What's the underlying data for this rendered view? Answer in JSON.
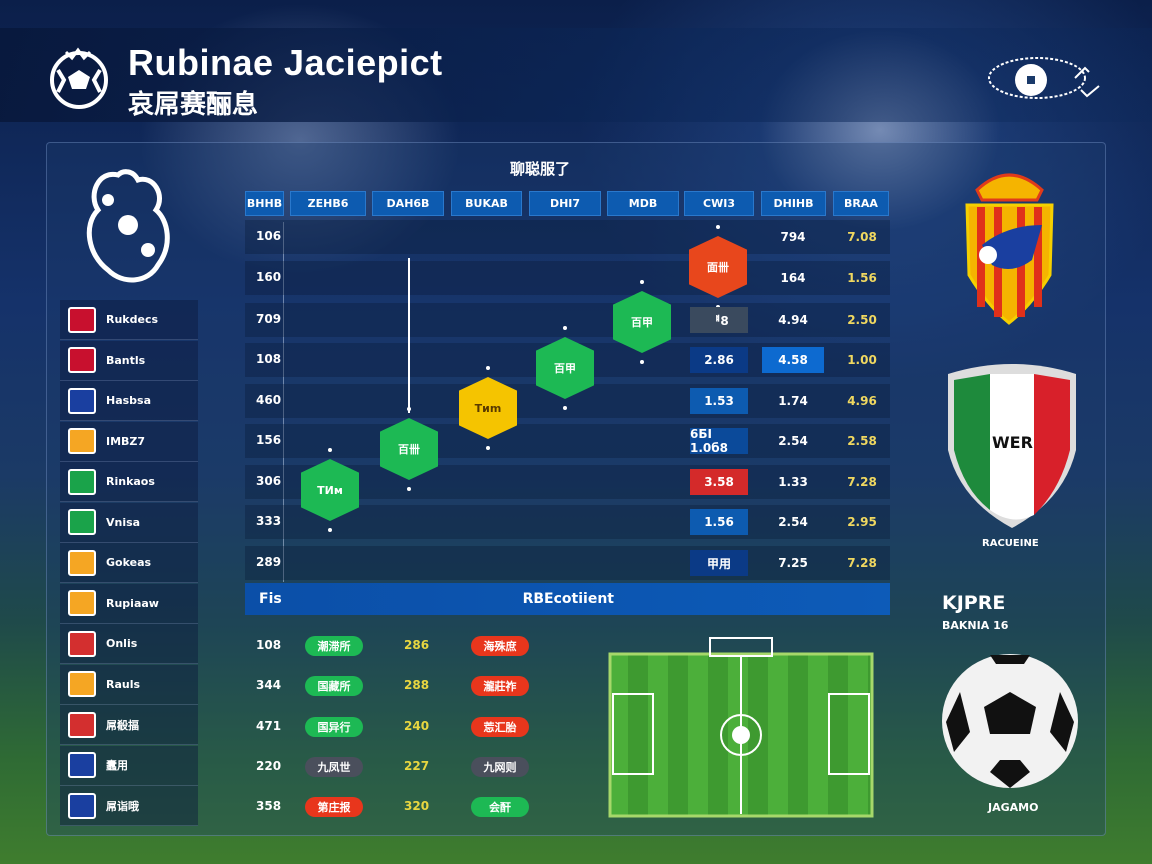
{
  "header": {
    "title": "Rubinae Jaciepict",
    "subtitle": "哀屌赛酾息"
  },
  "sidebar": {
    "items": [
      {
        "label": "Rukdecs",
        "icon": "uk-flag-icon",
        "color": "#c8102e"
      },
      {
        "label": "Bantls",
        "icon": "uk-flag-icon",
        "color": "#c8102e"
      },
      {
        "label": "Hasbsa",
        "icon": "soccer-ball-icon",
        "color": "#1a3fa0"
      },
      {
        "label": "IMBZ7",
        "icon": "catalan-crest-icon",
        "color": "#f5a623"
      },
      {
        "label": "Rinkaos",
        "icon": "italy-shield-icon",
        "color": "#1aa34a"
      },
      {
        "label": "Vnisa",
        "icon": "italy-shield-icon",
        "color": "#1aa34a"
      },
      {
        "label": "Gokeas",
        "icon": "catalan-crest-icon",
        "color": "#f5a623"
      },
      {
        "label": "Rupiaaw",
        "icon": "catalan-shield-icon",
        "color": "#f5a623"
      },
      {
        "label": "Onlis",
        "icon": "cross-crest-icon",
        "color": "#d32f2f"
      },
      {
        "label": "Rauls",
        "icon": "catalan-shield-icon",
        "color": "#f5a623"
      },
      {
        "label": "屌殽揊",
        "icon": "red-circle-crest-icon",
        "color": "#d32f2f"
      },
      {
        "label": "蠧用",
        "icon": "blue-crest-icon",
        "color": "#1a3fa0"
      },
      {
        "label": "屌诣哦",
        "icon": "soccer-ball-icon",
        "color": "#1a3fa0"
      }
    ]
  },
  "chart": {
    "title": "聊聪服了",
    "headers": [
      "BHHB",
      "ZEHB6",
      "DAH6B",
      "BUKAB",
      "DHI7",
      "MDB",
      "CWI3",
      "DHIHB",
      "BRAA"
    ],
    "row_labels": [
      "106",
      "160",
      "709",
      "108",
      "460",
      "156",
      "306",
      "333",
      "289"
    ],
    "hexes": [
      {
        "label": "TИм",
        "color": "#1db954"
      },
      {
        "label": "百卌",
        "color": "#1db954"
      },
      {
        "label": "Tиm",
        "color": "#f5c400"
      },
      {
        "label": "百甲",
        "color": "#1db954"
      },
      {
        "label": "百甲",
        "color": "#1db954"
      },
      {
        "label": "面卌",
        "color": "#e8471c"
      }
    ],
    "col_a": [
      {
        "v": "",
        "c": ""
      },
      {
        "v": "",
        "c": ""
      },
      {
        "v": "ᅤ8",
        "c": "#3a4a5e"
      },
      {
        "v": "2.86",
        "c": "#0b3a86"
      },
      {
        "v": "1.53",
        "c": "#0d5bb0"
      },
      {
        "v": "6БI 1.0б8",
        "c": "#0b4a9a"
      },
      {
        "v": "3.58",
        "c": "#d42a2a"
      },
      {
        "v": "1.56",
        "c": "#0d5bb0"
      },
      {
        "v": "甲用",
        "c": "#0b3a86"
      }
    ],
    "col_b": [
      "794",
      "164",
      "4.94",
      "4.58",
      "1.74",
      "2.54",
      "1.33",
      "2.54",
      "7.25"
    ],
    "col_c": [
      "7.08",
      "1.56",
      "2.50",
      "1.00",
      "4.96",
      "2.58",
      "7.28",
      "2.95",
      "7.28"
    ]
  },
  "section_bar": {
    "left": "Fis",
    "right": "RBEcotiient"
  },
  "results": [
    {
      "num": "108",
      "p1": "潮滞所",
      "p1c": "#1db954",
      "score": "286",
      "p2": "海殊庶",
      "p2c": "#e8361c"
    },
    {
      "num": "344",
      "p1": "国藏所",
      "p1c": "#1db954",
      "score": "288",
      "p2": "瀧莊祚",
      "p2c": "#e8361c"
    },
    {
      "num": "471",
      "p1": "国异行",
      "p1c": "#1db954",
      "score": "240",
      "p2": "莣汇胎",
      "p2c": "#e8361c"
    },
    {
      "num": "220",
      "p1": "九凤世",
      "p1c": "#4a4f5c",
      "score": "227",
      "p2": "九网则",
      "p2c": "#4a4f5c"
    },
    {
      "num": "358",
      "p1": "第庄报",
      "p1c": "#e8361c",
      "score": "320",
      "p2": "会酐",
      "p2c": "#1db954"
    }
  ],
  "right": {
    "crest_text": "WER",
    "crest_caption": "RACUEINE",
    "player_name": "KJPRE",
    "player_sub": "BAKNIA 16",
    "ball_caption": "JAGAMO"
  }
}
